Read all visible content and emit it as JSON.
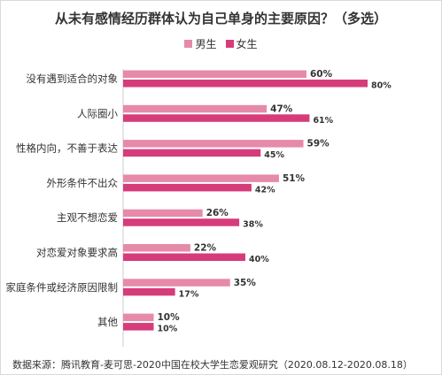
{
  "chart_data": {
    "type": "bar",
    "orientation": "horizontal",
    "title": "从未有感情经历群体认为自己单身的主要原因？（多选）",
    "categories": [
      "没有遇到适合的对象",
      "人际圈小",
      "性格内向，不善于表达",
      "外形条件不出众",
      "主观不想恋爱",
      "对恋爱对象要求高",
      "家庭条件或经济原因限制",
      "其他"
    ],
    "series": [
      {
        "name": "男生",
        "color": "#e68aaa",
        "values": [
          60,
          47,
          59,
          51,
          26,
          22,
          35,
          10
        ]
      },
      {
        "name": "女生",
        "color": "#d63c7a",
        "values": [
          80,
          61,
          45,
          42,
          38,
          40,
          17,
          10
        ]
      }
    ],
    "value_suffix": "%",
    "xlim": [
      0,
      100
    ],
    "grid": false,
    "legend_position": "top-center",
    "source": "数据来源：腾讯教育-麦可思-2020中国在校大学生恋爱观研究（2020.08.12-2020.08.18）"
  }
}
